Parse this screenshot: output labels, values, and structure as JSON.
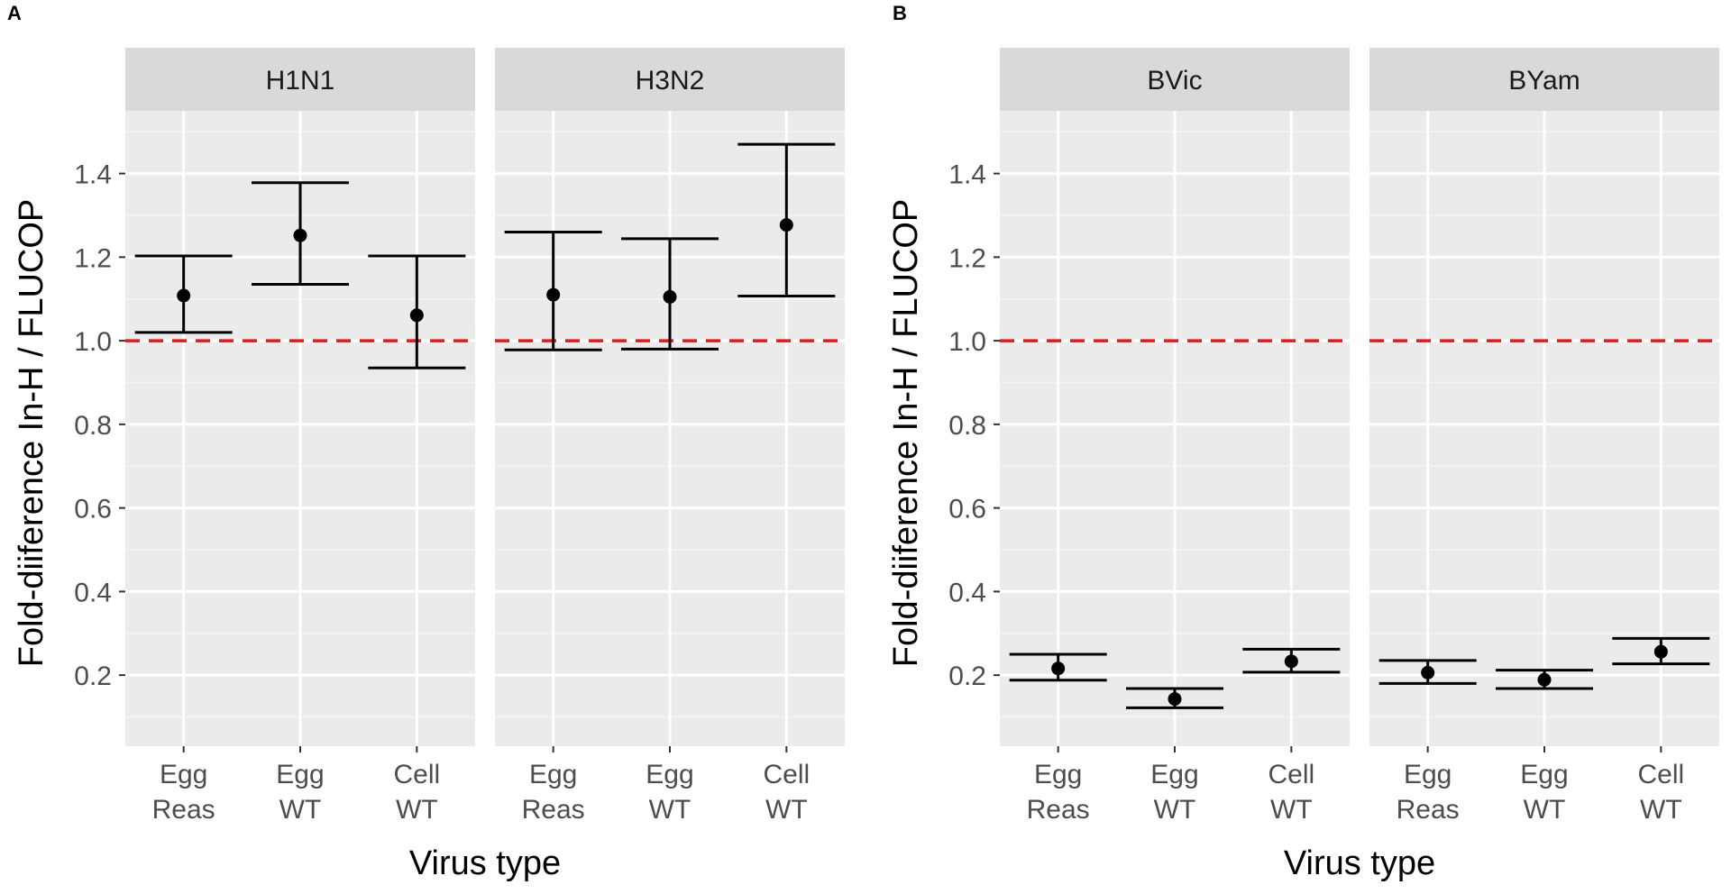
{
  "chart_data": [
    {
      "type": "errorbar",
      "panel_label": "A",
      "xlabel": "Virus type",
      "ylabel": "Fold-diiference In-H / FLUCOP",
      "ylim": [
        0.03,
        1.55
      ],
      "y_ticks": [
        0.2,
        0.4,
        0.6,
        0.8,
        1.0,
        1.2,
        1.4
      ],
      "y_tick_labels": [
        "0.2",
        "0.4",
        "0.6",
        "0.8",
        "1.0",
        "1.2",
        "1.4"
      ],
      "reference_line": {
        "y": 1.0,
        "color": "#e31a1c",
        "style": "dashed"
      },
      "categories": [
        [
          "Egg",
          "Reas"
        ],
        [
          "Egg",
          "WT"
        ],
        [
          "Cell",
          "WT"
        ]
      ],
      "facets": [
        {
          "name": "H1N1",
          "points": [
            {
              "estimate": 1.108,
              "lower": 1.02,
              "upper": 1.203
            },
            {
              "estimate": 1.252,
              "lower": 1.135,
              "upper": 1.378
            },
            {
              "estimate": 1.061,
              "lower": 0.935,
              "upper": 1.203
            }
          ]
        },
        {
          "name": "H3N2",
          "points": [
            {
              "estimate": 1.11,
              "lower": 0.978,
              "upper": 1.26
            },
            {
              "estimate": 1.105,
              "lower": 0.98,
              "upper": 1.244
            },
            {
              "estimate": 1.277,
              "lower": 1.107,
              "upper": 1.47
            }
          ]
        }
      ]
    },
    {
      "type": "errorbar",
      "panel_label": "B",
      "xlabel": "Virus type",
      "ylabel": "Fold-diiference In-H / FLUCOP",
      "ylim": [
        0.03,
        1.55
      ],
      "y_ticks": [
        0.2,
        0.4,
        0.6,
        0.8,
        1.0,
        1.2,
        1.4
      ],
      "y_tick_labels": [
        "0.2",
        "0.4",
        "0.6",
        "0.8",
        "1.0",
        "1.2",
        "1.4"
      ],
      "reference_line": {
        "y": 1.0,
        "color": "#e31a1c",
        "style": "dashed"
      },
      "categories": [
        [
          "Egg",
          "Reas"
        ],
        [
          "Egg",
          "WT"
        ],
        [
          "Cell",
          "WT"
        ]
      ],
      "facets": [
        {
          "name": "BVic",
          "points": [
            {
              "estimate": 0.216,
              "lower": 0.188,
              "upper": 0.25
            },
            {
              "estimate": 0.143,
              "lower": 0.122,
              "upper": 0.168
            },
            {
              "estimate": 0.233,
              "lower": 0.207,
              "upper": 0.262
            }
          ]
        },
        {
          "name": "BYam",
          "points": [
            {
              "estimate": 0.206,
              "lower": 0.18,
              "upper": 0.235
            },
            {
              "estimate": 0.189,
              "lower": 0.168,
              "upper": 0.212
            },
            {
              "estimate": 0.256,
              "lower": 0.227,
              "upper": 0.288
            }
          ]
        }
      ]
    }
  ]
}
